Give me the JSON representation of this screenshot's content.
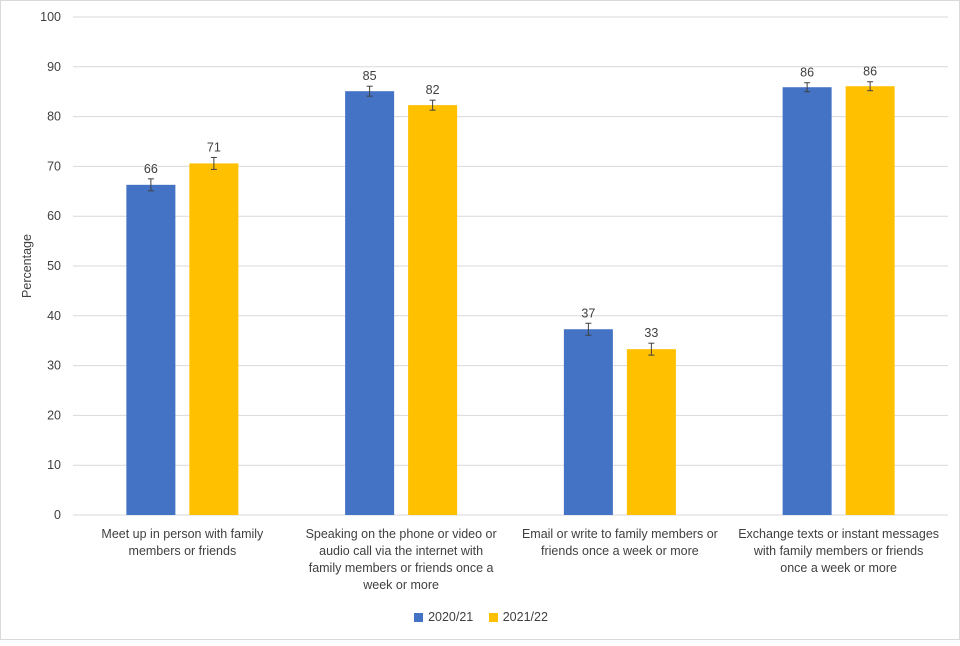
{
  "chart_data": {
    "type": "bar",
    "title": "",
    "xlabel": "",
    "ylabel": "Percentage",
    "ylim": [
      0,
      100
    ],
    "yticks": [
      0,
      10,
      20,
      30,
      40,
      50,
      60,
      70,
      80,
      90,
      100
    ],
    "grid": true,
    "legend_position": "bottom",
    "categories": [
      "Meet up in person with family members or friends",
      "Speaking on the phone or video or audio call via the internet with family members or friends once a week or more",
      "Email or write to family members or friends once a week or more",
      "Exchange texts or instant messages with family members or friends once a week or more"
    ],
    "category_lines": [
      [
        "Meet up in person with family",
        "members or friends"
      ],
      [
        "Speaking on the phone or video or",
        "audio call via the internet with",
        "family members or friends once a",
        "week or more"
      ],
      [
        "Email or write to family members or",
        "friends once a week or more"
      ],
      [
        "Exchange texts or instant messages",
        "with family members or friends",
        "once a week or more"
      ]
    ],
    "series": [
      {
        "name": "2020/21",
        "color": "#4472c4",
        "values": [
          66.3,
          85.1,
          37.3,
          85.9
        ],
        "labels": [
          "66",
          "85",
          "37",
          "86"
        ],
        "error": [
          1.2,
          1.0,
          1.2,
          0.9
        ]
      },
      {
        "name": "2021/22",
        "color": "#ffc000",
        "values": [
          70.6,
          82.3,
          33.3,
          86.1
        ],
        "labels": [
          "71",
          "82",
          "33",
          "86"
        ],
        "error": [
          1.2,
          1.0,
          1.2,
          0.9
        ]
      }
    ]
  }
}
